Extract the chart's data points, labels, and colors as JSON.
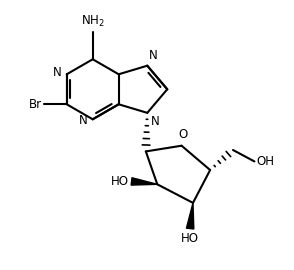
{
  "bg_color": "#ffffff",
  "line_color": "#000000",
  "line_width": 1.5,
  "font_size": 8.5,
  "figsize": [
    2.94,
    2.7
  ],
  "dpi": 100,
  "xlim": [
    0.02,
    0.98
  ],
  "ylim": [
    0.05,
    0.99
  ]
}
